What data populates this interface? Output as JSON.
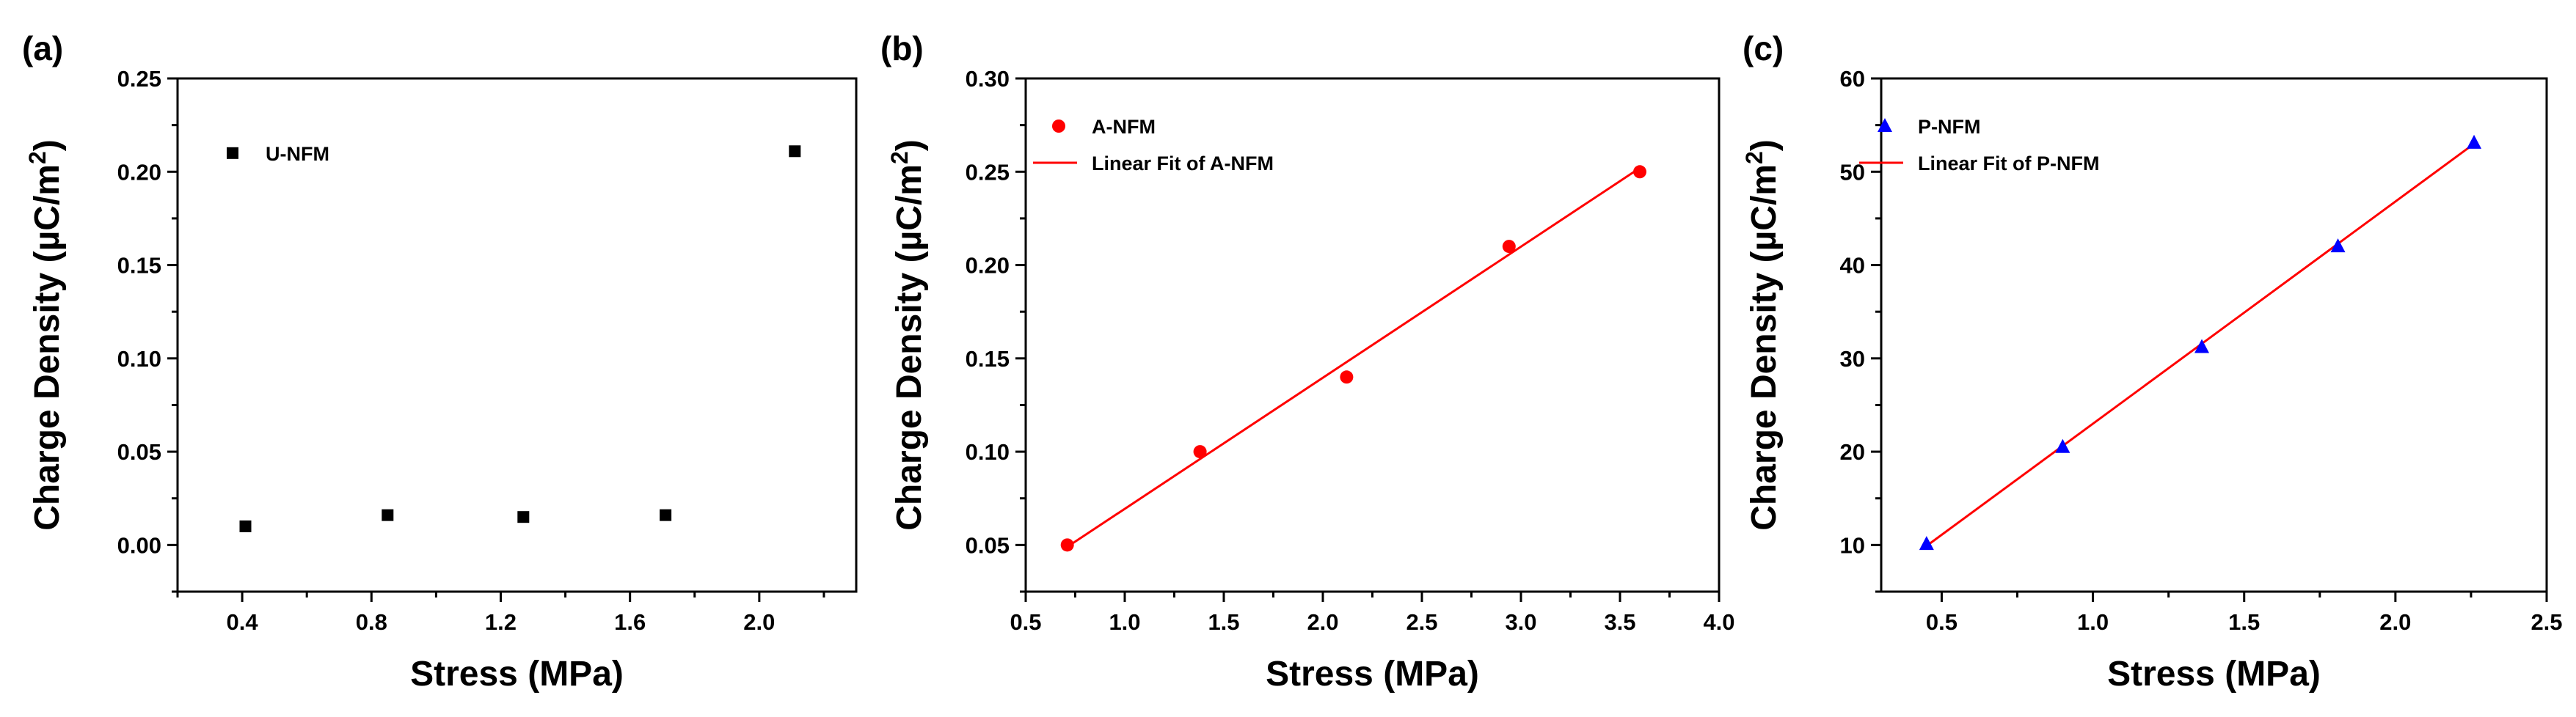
{
  "figure": {
    "panels": [
      "(a)",
      "(b)",
      "(c)"
    ]
  },
  "chart_data": [
    {
      "type": "scatter",
      "panel_label": "(a)",
      "xlabel": "Stress (MPa)",
      "ylabel": "Charge Density (µC/m²)",
      "ylabel_main": "Charge Density (µC/m",
      "ylabel_sup": "2",
      "ylabel_tail": ")",
      "xlim": [
        0.2,
        2.3
      ],
      "ylim": [
        -0.025,
        0.25
      ],
      "xticks": [
        0.4,
        0.8,
        1.2,
        1.6,
        2.0
      ],
      "xtick_labels": [
        "0.4",
        "0.8",
        "1.2",
        "1.6",
        "2.0"
      ],
      "yticks": [
        0.0,
        0.05,
        0.1,
        0.15,
        0.2,
        0.25
      ],
      "ytick_labels": [
        "0.00",
        "0.05",
        "0.10",
        "0.15",
        "0.20",
        "0.25"
      ],
      "series": [
        {
          "name": "U-NFM",
          "marker": "square",
          "color": "#000000",
          "x": [
            0.41,
            0.85,
            1.27,
            1.71,
            2.11
          ],
          "y": [
            0.01,
            0.016,
            0.015,
            0.016,
            0.211
          ]
        }
      ],
      "legend": [
        {
          "label": "U-NFM",
          "marker": "square",
          "color": "#000000"
        }
      ],
      "legend_position": "top-left"
    },
    {
      "type": "scatter",
      "panel_label": "(b)",
      "xlabel": "Stress (MPa)",
      "ylabel": "Charge Density (µC/m²)",
      "ylabel_main": "Charge Density (µC/m",
      "ylabel_sup": "2",
      "ylabel_tail": ")",
      "xlim": [
        0.5,
        4.0
      ],
      "ylim": [
        0.025,
        0.3
      ],
      "xticks": [
        0.5,
        1.0,
        1.5,
        2.0,
        2.5,
        3.0,
        3.5,
        4.0
      ],
      "xtick_labels": [
        "0.5",
        "1.0",
        "1.5",
        "2.0",
        "2.5",
        "3.0",
        "3.5",
        "4.0"
      ],
      "yticks": [
        0.05,
        0.1,
        0.15,
        0.2,
        0.25,
        0.3
      ],
      "ytick_labels": [
        "0.05",
        "0.10",
        "0.15",
        "0.20",
        "0.25",
        "0.30"
      ],
      "series": [
        {
          "name": "A-NFM",
          "marker": "circle",
          "color": "#ff0000",
          "x": [
            0.71,
            1.38,
            2.12,
            2.94,
            3.6
          ],
          "y": [
            0.05,
            0.1,
            0.14,
            0.21,
            0.25
          ]
        }
      ],
      "fit": {
        "name": "Linear Fit of A-NFM",
        "color": "#ff0000",
        "x": [
          0.71,
          3.6
        ],
        "y": [
          0.049,
          0.252
        ]
      },
      "legend": [
        {
          "label": "A-NFM",
          "marker": "circle",
          "color": "#ff0000"
        },
        {
          "label": "Linear Fit of A-NFM",
          "marker": "line",
          "color": "#ff0000"
        }
      ],
      "legend_position": "top-left"
    },
    {
      "type": "scatter",
      "panel_label": "(c)",
      "xlabel": "Stress (MPa)",
      "ylabel": "Charge Density (µC/m²)",
      "ylabel_main": "Charge Density (µC/m",
      "ylabel_sup": "2",
      "ylabel_tail": ")",
      "xlim": [
        0.3,
        2.5
      ],
      "ylim": [
        5,
        60
      ],
      "xticks": [
        0.5,
        1.0,
        1.5,
        2.0,
        2.5
      ],
      "xtick_labels": [
        "0.5",
        "1.0",
        "1.5",
        "2.0",
        "2.5"
      ],
      "yticks": [
        10,
        20,
        30,
        40,
        50,
        60
      ],
      "ytick_labels": [
        "10",
        "20",
        "30",
        "40",
        "50",
        "60"
      ],
      "series": [
        {
          "name": "P-NFM",
          "marker": "triangle",
          "color": "#0000ff",
          "x": [
            0.45,
            0.9,
            1.36,
            1.81,
            2.26
          ],
          "y": [
            10.1,
            20.5,
            31.2,
            42.0,
            53.1
          ]
        }
      ],
      "fit": {
        "name": "Linear Fit of P-NFM",
        "color": "#ff0000",
        "x": [
          0.45,
          2.26
        ],
        "y": [
          9.9,
          53.0
        ]
      },
      "legend": [
        {
          "label": "P-NFM",
          "marker": "triangle",
          "color": "#0000ff"
        },
        {
          "label": "Linear Fit of P-NFM",
          "marker": "line",
          "color": "#ff0000"
        }
      ],
      "legend_position": "top-left"
    }
  ]
}
